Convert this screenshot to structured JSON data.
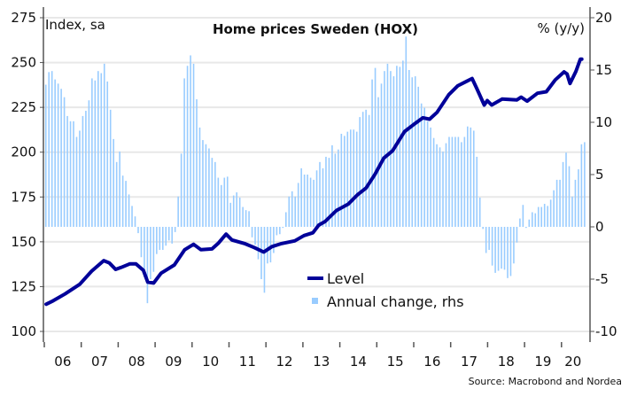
{
  "chart_data": {
    "type": "bar+line",
    "title": "Home prices Sweden (HOX)",
    "ylabel_left": "Index, sa",
    "ylabel_right": "% (y/y)",
    "source": "Source: Macrobond and Nordea",
    "ylim_left": [
      100,
      275
    ],
    "ylim_right": [
      -10,
      20
    ],
    "yticks_left": [
      "100",
      "125",
      "150",
      "175",
      "200",
      "225",
      "250",
      "275"
    ],
    "yticks_right": [
      "-10",
      "-5",
      "0",
      "5",
      "10",
      "15",
      "20"
    ],
    "x_labels": [
      "06",
      "07",
      "08",
      "09",
      "10",
      "11",
      "12",
      "13",
      "14",
      "15",
      "16",
      "17",
      "18",
      "19",
      "20"
    ],
    "x_start_year": 2006,
    "grid": true,
    "legend": {
      "position": "bottom-center",
      "entries": [
        "Level",
        "Annual change, rhs"
      ]
    },
    "colors": {
      "level": "#000099",
      "annual_change": "#99ccff",
      "grid": "#e8e8e8"
    },
    "series": [
      {
        "name": "Annual change, rhs",
        "type": "bar",
        "axis": "right",
        "frequency": "monthly",
        "start": "2006-01",
        "values": [
          13.6,
          14.8,
          14.9,
          14.1,
          13.7,
          13.2,
          12.4,
          10.6,
          10.1,
          10.1,
          8.6,
          9.2,
          10.6,
          11.1,
          12.1,
          14.2,
          14.0,
          14.9,
          14.7,
          15.6,
          13.9,
          11.2,
          8.4,
          6.2,
          7.2,
          4.9,
          4.4,
          3.1,
          2.0,
          1.0,
          -0.6,
          -2.9,
          -4.8,
          -7.3,
          -5.0,
          -4.3,
          -2.6,
          -2.2,
          -2.2,
          -1.8,
          -1.3,
          -1.6,
          -0.5,
          2.9,
          7.0,
          14.2,
          15.4,
          16.4,
          15.6,
          12.2,
          9.5,
          8.3,
          7.9,
          7.5,
          6.6,
          6.2,
          4.7,
          4.0,
          4.7,
          4.8,
          2.3,
          3.0,
          3.3,
          2.8,
          1.9,
          1.6,
          1.5,
          -1.0,
          -1.7,
          -3.1,
          -5.0,
          -6.3,
          -3.5,
          -3.4,
          -2.5,
          -0.8,
          -0.7,
          -0.1,
          1.4,
          2.9,
          3.4,
          2.9,
          4.2,
          5.6,
          5.0,
          5.0,
          4.7,
          4.5,
          5.4,
          6.2,
          5.6,
          6.7,
          6.6,
          7.8,
          7.0,
          7.4,
          8.9,
          8.7,
          9.1,
          9.3,
          9.3,
          9.1,
          10.5,
          11.0,
          11.2,
          10.7,
          14.1,
          15.2,
          12.4,
          13.7,
          14.9,
          15.6,
          14.9,
          14.4,
          15.4,
          15.3,
          15.9,
          18.2,
          15.0,
          14.3,
          14.4,
          13.4,
          11.8,
          11.4,
          10.1,
          9.5,
          8.5,
          7.9,
          7.6,
          7.2,
          8.0,
          8.6,
          8.6,
          8.6,
          8.6,
          8.1,
          8.6,
          9.6,
          9.5,
          9.2,
          6.7,
          2.8,
          -0.2,
          -2.5,
          -2.2,
          -3.7,
          -4.4,
          -4.2,
          -4.0,
          -4.1,
          -4.9,
          -4.7,
          -3.5,
          -1.5,
          0.8,
          2.1,
          -0.1,
          0.7,
          1.4,
          1.3,
          1.9,
          1.9,
          2.2,
          2.0,
          2.6,
          3.5,
          4.5,
          4.5,
          6.2,
          7.1,
          5.8,
          2.9,
          4.5,
          5.5,
          7.9,
          8.1
        ]
      },
      {
        "name": "Level",
        "type": "line",
        "axis": "left",
        "points": [
          [
            2006.05,
            115.2
          ],
          [
            2006.24,
            117.1
          ],
          [
            2006.56,
            120.9
          ],
          [
            2006.96,
            126.3
          ],
          [
            2007.28,
            133.6
          ],
          [
            2007.61,
            139.5
          ],
          [
            2007.76,
            138.2
          ],
          [
            2007.93,
            134.6
          ],
          [
            2008.08,
            135.7
          ],
          [
            2008.32,
            137.7
          ],
          [
            2008.48,
            137.7
          ],
          [
            2008.68,
            134.1
          ],
          [
            2008.8,
            127.5
          ],
          [
            2008.96,
            127.0
          ],
          [
            2009.16,
            132.5
          ],
          [
            2009.52,
            137.1
          ],
          [
            2009.8,
            145.6
          ],
          [
            2010.04,
            148.6
          ],
          [
            2010.24,
            145.6
          ],
          [
            2010.54,
            146.0
          ],
          [
            2010.72,
            149.4
          ],
          [
            2010.92,
            154.3
          ],
          [
            2011.08,
            151.0
          ],
          [
            2011.44,
            148.9
          ],
          [
            2011.68,
            146.8
          ],
          [
            2011.94,
            144.3
          ],
          [
            2012.16,
            147.3
          ],
          [
            2012.4,
            148.9
          ],
          [
            2012.78,
            150.5
          ],
          [
            2013.03,
            153.5
          ],
          [
            2013.27,
            155.0
          ],
          [
            2013.43,
            159.3
          ],
          [
            2013.6,
            161.3
          ],
          [
            2013.91,
            167.5
          ],
          [
            2014.23,
            171.1
          ],
          [
            2014.47,
            176.1
          ],
          [
            2014.71,
            180.0
          ],
          [
            2014.95,
            187.6
          ],
          [
            2015.19,
            196.7
          ],
          [
            2015.43,
            200.8
          ],
          [
            2015.75,
            211.5
          ],
          [
            2015.99,
            215.3
          ],
          [
            2016.25,
            219.2
          ],
          [
            2016.43,
            218.4
          ],
          [
            2016.63,
            222.2
          ],
          [
            2016.95,
            232.1
          ],
          [
            2017.19,
            237.0
          ],
          [
            2017.43,
            239.5
          ],
          [
            2017.58,
            241.1
          ],
          [
            2017.71,
            235.4
          ],
          [
            2017.91,
            226.3
          ],
          [
            2017.99,
            228.8
          ],
          [
            2018.11,
            226.3
          ],
          [
            2018.39,
            229.6
          ],
          [
            2018.79,
            229.1
          ],
          [
            2018.91,
            230.7
          ],
          [
            2019.07,
            228.5
          ],
          [
            2019.35,
            232.9
          ],
          [
            2019.59,
            233.7
          ],
          [
            2019.83,
            240.3
          ],
          [
            2020.07,
            244.8
          ],
          [
            2020.15,
            243.6
          ],
          [
            2020.23,
            238.3
          ],
          [
            2020.39,
            245.1
          ],
          [
            2020.51,
            251.9
          ],
          [
            2020.55,
            251.9
          ]
        ]
      }
    ]
  }
}
